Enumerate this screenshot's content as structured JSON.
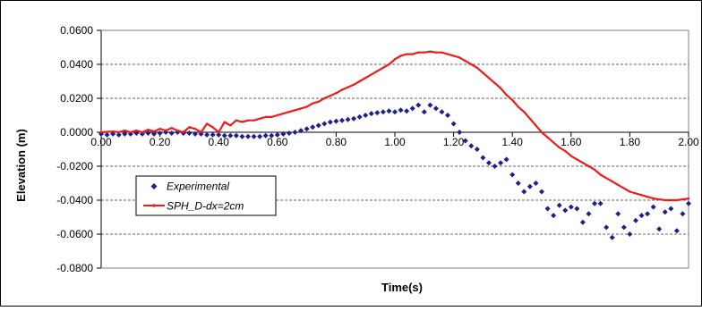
{
  "chart_data": {
    "type": "line",
    "title": "",
    "xlabel": "Time(s)",
    "ylabel": "Elevation (m)",
    "xlim": [
      0,
      2
    ],
    "ylim": [
      -0.08,
      0.06
    ],
    "x_ticks": [
      0,
      0.2,
      0.4,
      0.6,
      0.8,
      1.0,
      1.2,
      1.4,
      1.6,
      1.8,
      2.0
    ],
    "x_tick_labels": [
      "0.00",
      "0.20",
      "0.40",
      "0.60",
      "0.80",
      "1.00",
      "1.20",
      "1.40",
      "1.60",
      "1.80",
      "2.00"
    ],
    "y_ticks": [
      0.06,
      0.04,
      0.02,
      0.0,
      -0.02,
      -0.04,
      -0.06,
      -0.08
    ],
    "y_tick_labels": [
      "0.0600",
      "0.0400",
      "0.0200",
      "0.0000",
      "-0.0200",
      "-0.0400",
      "-0.0600",
      "-0.0800"
    ],
    "grid": "horizontal dashed",
    "legend_placement": "bottom-left",
    "series": [
      {
        "name": "Experimental",
        "style": "markers",
        "marker": "diamond",
        "color": "#1f1f8f",
        "points": [
          [
            0.0,
            -0.001
          ],
          [
            0.02,
            -0.0015
          ],
          [
            0.04,
            -0.001
          ],
          [
            0.06,
            -0.0015
          ],
          [
            0.08,
            -0.001
          ],
          [
            0.1,
            -0.001
          ],
          [
            0.12,
            -0.0005
          ],
          [
            0.14,
            -0.001
          ],
          [
            0.16,
            -0.0005
          ],
          [
            0.18,
            -0.001
          ],
          [
            0.2,
            -0.0005
          ],
          [
            0.22,
            0.0
          ],
          [
            0.24,
            -0.0005
          ],
          [
            0.26,
            0.0
          ],
          [
            0.28,
            -0.0005
          ],
          [
            0.3,
            -0.0005
          ],
          [
            0.32,
            -0.001
          ],
          [
            0.34,
            -0.001
          ],
          [
            0.36,
            -0.0015
          ],
          [
            0.38,
            -0.0015
          ],
          [
            0.4,
            -0.0015
          ],
          [
            0.42,
            -0.002
          ],
          [
            0.44,
            -0.002
          ],
          [
            0.46,
            -0.002
          ],
          [
            0.48,
            -0.0025
          ],
          [
            0.5,
            -0.0025
          ],
          [
            0.52,
            -0.0025
          ],
          [
            0.54,
            -0.0025
          ],
          [
            0.56,
            -0.002
          ],
          [
            0.58,
            -0.002
          ],
          [
            0.6,
            -0.0015
          ],
          [
            0.62,
            -0.001
          ],
          [
            0.64,
            -0.0005
          ],
          [
            0.66,
            0.0
          ],
          [
            0.68,
            0.001
          ],
          [
            0.7,
            0.002
          ],
          [
            0.72,
            0.003
          ],
          [
            0.74,
            0.004
          ],
          [
            0.76,
            0.005
          ],
          [
            0.78,
            0.006
          ],
          [
            0.8,
            0.0065
          ],
          [
            0.82,
            0.007
          ],
          [
            0.84,
            0.0075
          ],
          [
            0.86,
            0.008
          ],
          [
            0.88,
            0.009
          ],
          [
            0.9,
            0.01
          ],
          [
            0.92,
            0.011
          ],
          [
            0.94,
            0.0115
          ],
          [
            0.96,
            0.012
          ],
          [
            0.98,
            0.0125
          ],
          [
            1.0,
            0.012
          ],
          [
            1.02,
            0.013
          ],
          [
            1.04,
            0.0125
          ],
          [
            1.06,
            0.014
          ],
          [
            1.08,
            0.016
          ],
          [
            1.1,
            0.012
          ],
          [
            1.12,
            0.016
          ],
          [
            1.14,
            0.014
          ],
          [
            1.16,
            0.012
          ],
          [
            1.18,
            0.01
          ],
          [
            1.2,
            0.005
          ],
          [
            1.22,
            0.0
          ],
          [
            1.24,
            -0.005
          ],
          [
            1.26,
            -0.008
          ],
          [
            1.28,
            -0.01
          ],
          [
            1.3,
            -0.015
          ],
          [
            1.32,
            -0.018
          ],
          [
            1.34,
            -0.02
          ],
          [
            1.36,
            -0.018
          ],
          [
            1.38,
            -0.016
          ],
          [
            1.4,
            -0.025
          ],
          [
            1.42,
            -0.03
          ],
          [
            1.44,
            -0.035
          ],
          [
            1.46,
            -0.032
          ],
          [
            1.48,
            -0.03
          ],
          [
            1.5,
            -0.035
          ],
          [
            1.52,
            -0.045
          ],
          [
            1.54,
            -0.049
          ],
          [
            1.56,
            -0.043
          ],
          [
            1.58,
            -0.046
          ],
          [
            1.6,
            -0.044
          ],
          [
            1.62,
            -0.045
          ],
          [
            1.64,
            -0.053
          ],
          [
            1.66,
            -0.048
          ],
          [
            1.68,
            -0.042
          ],
          [
            1.7,
            -0.042
          ],
          [
            1.72,
            -0.056
          ],
          [
            1.74,
            -0.062
          ],
          [
            1.76,
            -0.048
          ],
          [
            1.78,
            -0.056
          ],
          [
            1.8,
            -0.06
          ],
          [
            1.82,
            -0.052
          ],
          [
            1.84,
            -0.049
          ],
          [
            1.86,
            -0.048
          ],
          [
            1.88,
            -0.044
          ],
          [
            1.9,
            -0.057
          ],
          [
            1.92,
            -0.047
          ],
          [
            1.94,
            -0.045
          ],
          [
            1.96,
            -0.058
          ],
          [
            1.98,
            -0.048
          ],
          [
            2.0,
            -0.042
          ]
        ]
      },
      {
        "name": "SPH_D-dx=2cm",
        "style": "line",
        "marker": "small-point",
        "color": "#ee1c1c",
        "points": [
          [
            0.0,
            0.0
          ],
          [
            0.04,
            0.0005
          ],
          [
            0.06,
            0.0
          ],
          [
            0.08,
            0.001
          ],
          [
            0.1,
            0.0
          ],
          [
            0.12,
            0.001
          ],
          [
            0.14,
            0.0
          ],
          [
            0.16,
            0.0015
          ],
          [
            0.18,
            0.0005
          ],
          [
            0.2,
            0.002
          ],
          [
            0.22,
            0.001
          ],
          [
            0.24,
            0.0025
          ],
          [
            0.26,
            0.001
          ],
          [
            0.28,
            0.0
          ],
          [
            0.3,
            0.003
          ],
          [
            0.32,
            0.002
          ],
          [
            0.34,
            0.0
          ],
          [
            0.36,
            0.005
          ],
          [
            0.38,
            0.003
          ],
          [
            0.4,
            0.0
          ],
          [
            0.42,
            0.006
          ],
          [
            0.44,
            0.004
          ],
          [
            0.46,
            0.007
          ],
          [
            0.48,
            0.006
          ],
          [
            0.5,
            0.007
          ],
          [
            0.52,
            0.007
          ],
          [
            0.54,
            0.008
          ],
          [
            0.56,
            0.009
          ],
          [
            0.58,
            0.009
          ],
          [
            0.6,
            0.01
          ],
          [
            0.62,
            0.011
          ],
          [
            0.64,
            0.012
          ],
          [
            0.66,
            0.013
          ],
          [
            0.68,
            0.014
          ],
          [
            0.7,
            0.015
          ],
          [
            0.72,
            0.017
          ],
          [
            0.74,
            0.018
          ],
          [
            0.76,
            0.02
          ],
          [
            0.78,
            0.0215
          ],
          [
            0.8,
            0.023
          ],
          [
            0.82,
            0.025
          ],
          [
            0.84,
            0.0265
          ],
          [
            0.86,
            0.028
          ],
          [
            0.88,
            0.03
          ],
          [
            0.9,
            0.032
          ],
          [
            0.92,
            0.034
          ],
          [
            0.94,
            0.036
          ],
          [
            0.96,
            0.038
          ],
          [
            0.98,
            0.04
          ],
          [
            1.0,
            0.043
          ],
          [
            1.02,
            0.045
          ],
          [
            1.04,
            0.046
          ],
          [
            1.06,
            0.046
          ],
          [
            1.08,
            0.047
          ],
          [
            1.1,
            0.047
          ],
          [
            1.12,
            0.0475
          ],
          [
            1.14,
            0.047
          ],
          [
            1.16,
            0.047
          ],
          [
            1.18,
            0.046
          ],
          [
            1.2,
            0.045
          ],
          [
            1.22,
            0.044
          ],
          [
            1.24,
            0.042
          ],
          [
            1.26,
            0.04
          ],
          [
            1.28,
            0.038
          ],
          [
            1.3,
            0.035
          ],
          [
            1.32,
            0.032
          ],
          [
            1.34,
            0.029
          ],
          [
            1.36,
            0.026
          ],
          [
            1.38,
            0.022
          ],
          [
            1.4,
            0.019
          ],
          [
            1.42,
            0.015
          ],
          [
            1.44,
            0.012
          ],
          [
            1.46,
            0.008
          ],
          [
            1.48,
            0.004
          ],
          [
            1.5,
            0.0
          ],
          [
            1.52,
            -0.003
          ],
          [
            1.54,
            -0.006
          ],
          [
            1.56,
            -0.009
          ],
          [
            1.58,
            -0.011
          ],
          [
            1.6,
            -0.014
          ],
          [
            1.62,
            -0.016
          ],
          [
            1.64,
            -0.018
          ],
          [
            1.66,
            -0.02
          ],
          [
            1.68,
            -0.022
          ],
          [
            1.7,
            -0.025
          ],
          [
            1.72,
            -0.027
          ],
          [
            1.74,
            -0.029
          ],
          [
            1.76,
            -0.031
          ],
          [
            1.78,
            -0.033
          ],
          [
            1.8,
            -0.035
          ],
          [
            1.82,
            -0.036
          ],
          [
            1.84,
            -0.037
          ],
          [
            1.86,
            -0.038
          ],
          [
            1.88,
            -0.039
          ],
          [
            1.9,
            -0.0395
          ],
          [
            1.92,
            -0.04
          ],
          [
            1.94,
            -0.04
          ],
          [
            1.96,
            -0.04
          ],
          [
            1.98,
            -0.0395
          ],
          [
            2.0,
            -0.039
          ]
        ]
      }
    ]
  }
}
